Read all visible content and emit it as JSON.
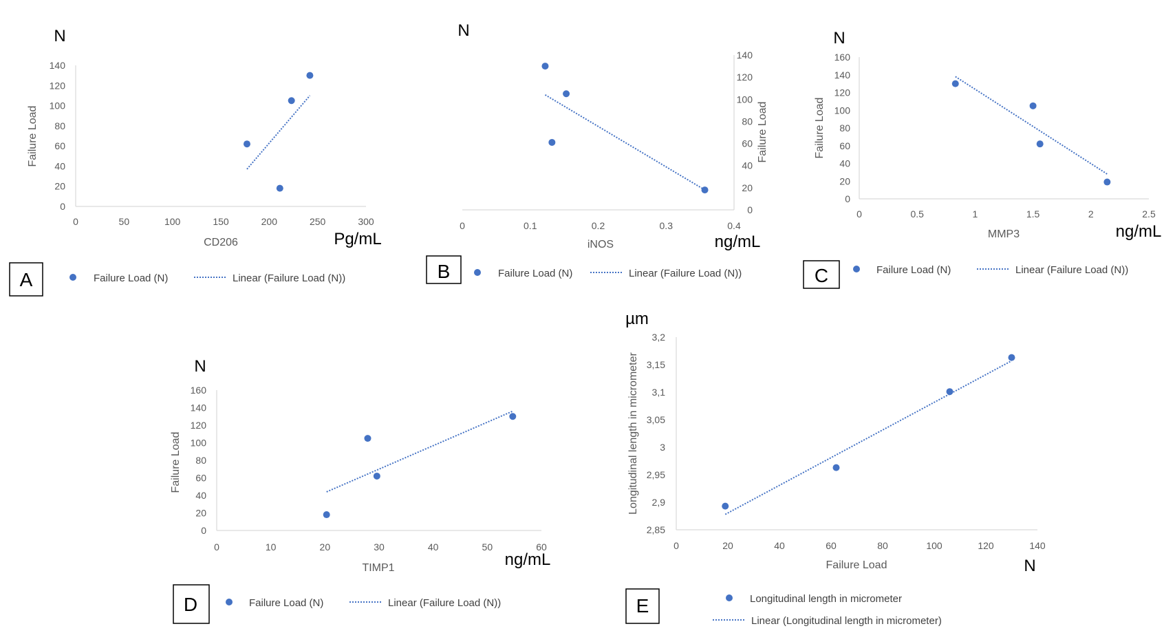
{
  "colors": {
    "marker": "#4472C4",
    "axis": "#d9d9d9",
    "text": "#595959",
    "unit": "#000000"
  },
  "chart_data": [
    {
      "id": "A",
      "type": "scatter",
      "x_unit": "Pg/mL",
      "y_unit": "N",
      "xlabel": "CD206",
      "ylabel": "Failure Load",
      "xlim": [
        0,
        300
      ],
      "ylim": [
        0,
        140
      ],
      "xticks": [
        "0",
        "50",
        "100",
        "150",
        "200",
        "250",
        "300"
      ],
      "yticks": [
        "0",
        "20",
        "40",
        "60",
        "80",
        "100",
        "120",
        "140"
      ],
      "series": [
        {
          "name": "Failure Load (N)",
          "x": [
            177,
            211,
            223,
            242
          ],
          "y": [
            62,
            18,
            105,
            130
          ]
        }
      ],
      "trendline": {
        "name": "Linear (Failure Load (N))",
        "x": [
          177,
          242
        ],
        "y": [
          37,
          110
        ]
      },
      "legend": {
        "marker_label": "Failure Load (N)",
        "line_label": "Linear (Failure Load (N))"
      }
    },
    {
      "id": "B",
      "type": "scatter",
      "x_unit": "ng/mL",
      "y_unit": "N",
      "xlabel": "iNOS",
      "ylabel": "Failure Load",
      "xlim": [
        0,
        0.4
      ],
      "ylim": [
        0,
        140
      ],
      "xticks": [
        "0",
        "0.1",
        "0.2",
        "0.3",
        "0.4"
      ],
      "yticks": [
        "0",
        "20",
        "40",
        "60",
        "80",
        "100",
        "120",
        "140"
      ],
      "series": [
        {
          "name": "Failure Load (N)",
          "x": [
            0.122,
            0.153,
            0.132,
            0.357
          ],
          "y": [
            130,
            105,
            61,
            18
          ]
        }
      ],
      "trendline": {
        "name": "Linear (Failure Load (N))",
        "x": [
          0.122,
          0.357
        ],
        "y": [
          104,
          18
        ]
      },
      "legend": {
        "marker_label": "Failure Load (N)",
        "line_label": "Linear (Failure Load (N))"
      }
    },
    {
      "id": "C",
      "type": "scatter",
      "x_unit": "ng/mL",
      "y_unit": "N",
      "xlabel": "MMP3",
      "ylabel": "Failure Load",
      "xlim": [
        0,
        2.5
      ],
      "ylim": [
        0,
        160
      ],
      "xticks": [
        "0",
        "0.5",
        "1",
        "1.5",
        "2",
        "2.5"
      ],
      "yticks": [
        "0",
        "20",
        "40",
        "60",
        "80",
        "100",
        "120",
        "140",
        "160"
      ],
      "series": [
        {
          "name": "Failure Load (N)",
          "x": [
            0.83,
            1.5,
            1.56,
            2.14
          ],
          "y": [
            130,
            105,
            62,
            19
          ]
        }
      ],
      "trendline": {
        "name": "Linear (Failure Load (N))",
        "x": [
          0.83,
          2.14
        ],
        "y": [
          138,
          28
        ]
      },
      "legend": {
        "marker_label": "Failure Load (N)",
        "line_label": "Linear (Failure Load (N))"
      }
    },
    {
      "id": "D",
      "type": "scatter",
      "x_unit": "ng/mL",
      "y_unit": "N",
      "xlabel": "TIMP1",
      "ylabel": "Failure Load",
      "xlim": [
        0,
        60
      ],
      "ylim": [
        0,
        160
      ],
      "xticks": [
        "0",
        "10",
        "20",
        "30",
        "40",
        "50",
        "60"
      ],
      "yticks": [
        "0",
        "20",
        "40",
        "60",
        "80",
        "100",
        "120",
        "140",
        "160"
      ],
      "series": [
        {
          "name": "Failure Load (N)",
          "x": [
            20.3,
            27.9,
            29.6,
            54.7
          ],
          "y": [
            18,
            105,
            62,
            130
          ]
        }
      ],
      "trendline": {
        "name": "Linear (Failure Load (N))",
        "x": [
          20.3,
          54.7
        ],
        "y": [
          44,
          136
        ]
      },
      "legend": {
        "marker_label": "Failure Load (N)",
        "line_label": "Linear (Failure Load (N))"
      }
    },
    {
      "id": "E",
      "type": "scatter",
      "x_unit": "N",
      "y_unit": "µm",
      "xlabel": "Failure Load",
      "ylabel": "Longitudinal length in micrometer",
      "xlim": [
        0,
        140
      ],
      "ylim": [
        2.85,
        3.2
      ],
      "xticks": [
        "0",
        "20",
        "40",
        "60",
        "80",
        "100",
        "120",
        "140"
      ],
      "yticks": [
        "2,85",
        "2,9",
        "2,95",
        "3",
        "3,05",
        "3,1",
        "3,15",
        "3,2"
      ],
      "series": [
        {
          "name": "Longitudinal length in micrometer",
          "x": [
            19,
            62,
            106,
            130
          ],
          "y": [
            2.893,
            2.963,
            3.101,
            3.163
          ]
        }
      ],
      "trendline": {
        "name": "Linear (Longitudinal length in micrometer)",
        "x": [
          19,
          130
        ],
        "y": [
          2.878,
          3.157
        ]
      },
      "legend": {
        "marker_label": "Longitudinal length in micrometer",
        "line_label": "Linear (Longitudinal length in micrometer)"
      }
    }
  ]
}
